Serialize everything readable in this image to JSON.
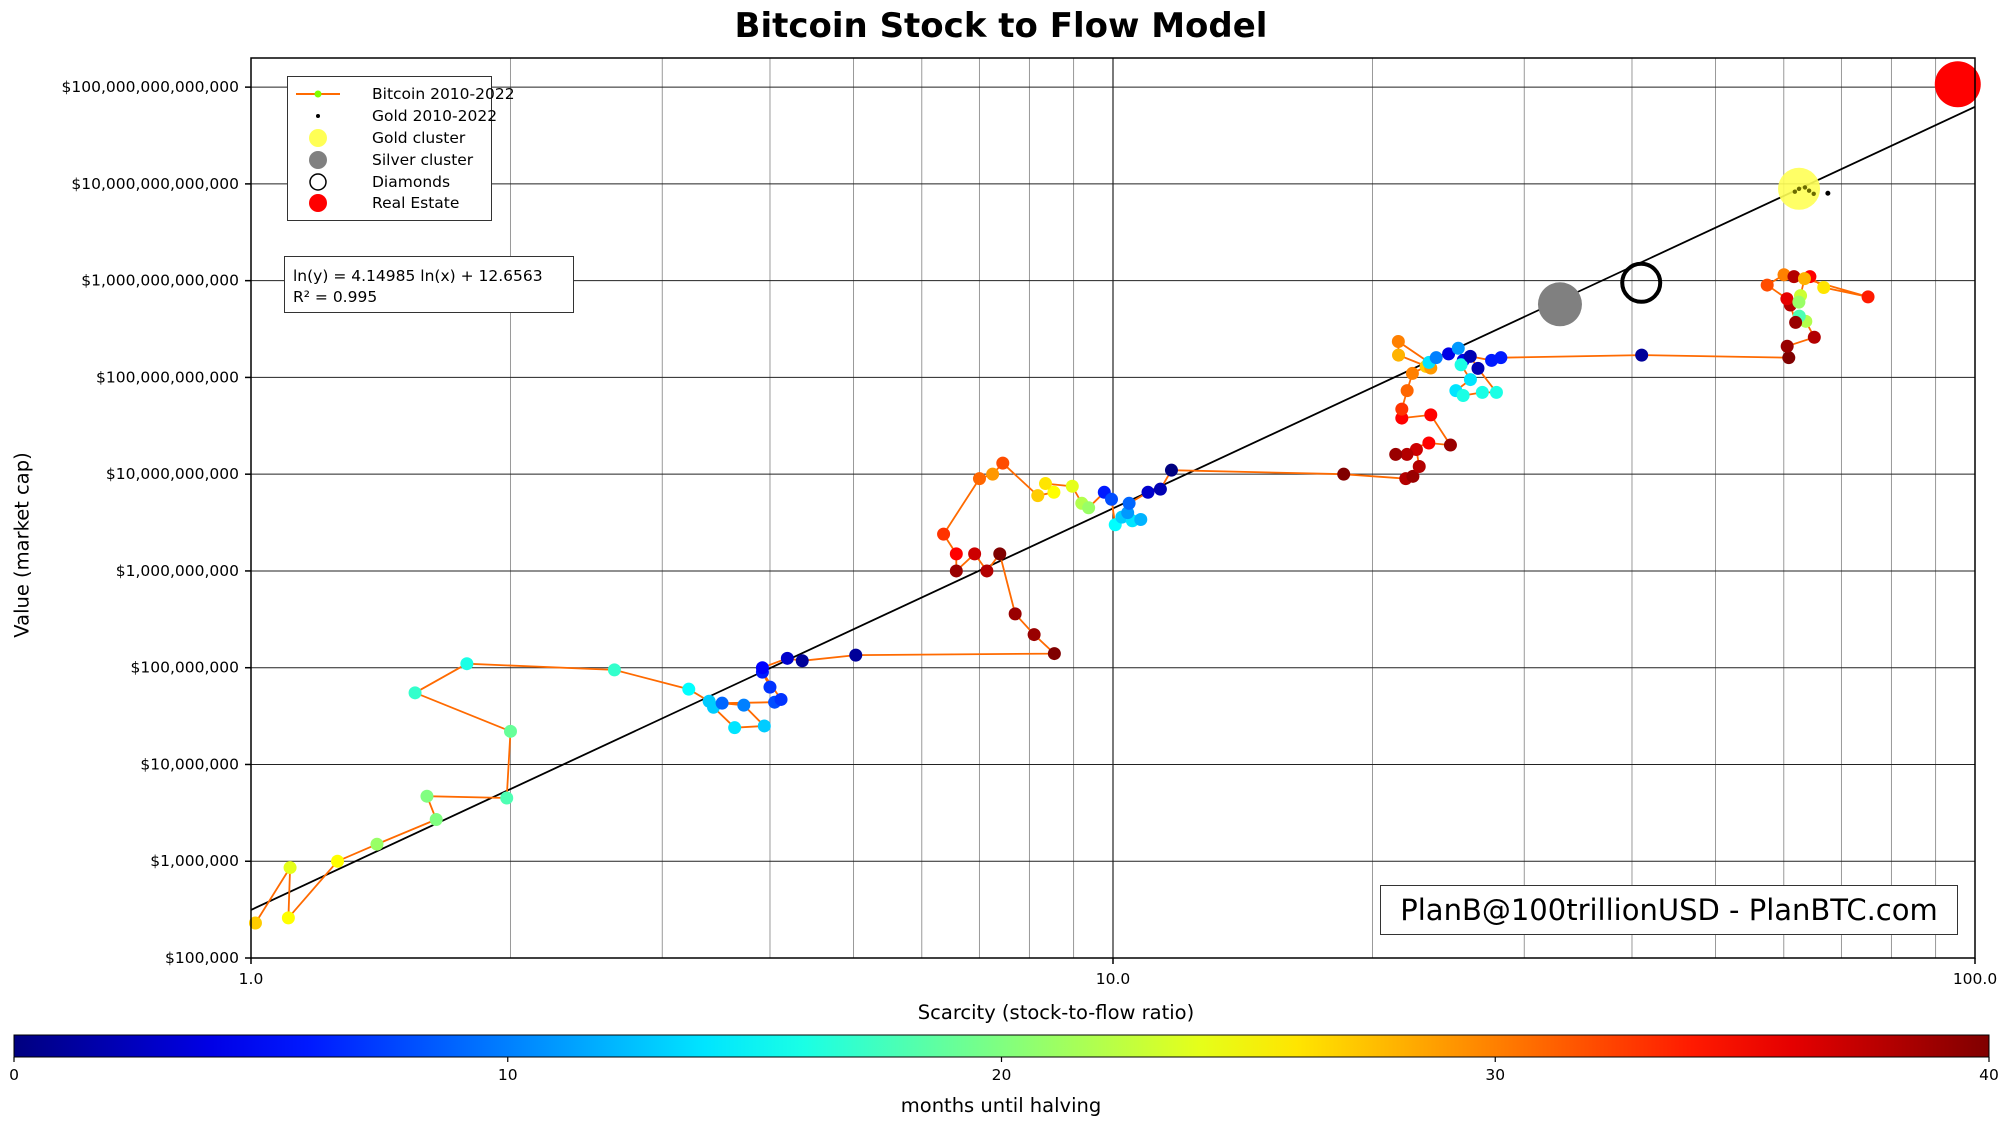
{
  "chart_data": {
    "type": "scatter",
    "title": "Bitcoin Stock to Flow Model",
    "xlabel": "Scarcity (stock-to-flow ratio)",
    "ylabel": "Value (market cap)",
    "x_scale": "log",
    "y_scale": "log",
    "xlim": [
      1.0,
      100.0
    ],
    "ylim": [
      100000,
      200000000000000
    ],
    "x_ticks": [
      {
        "v": 1,
        "label": "1.0"
      },
      {
        "v": 10,
        "label": "10.0"
      },
      {
        "v": 100,
        "label": "100.0"
      }
    ],
    "y_ticks": [
      {
        "v": 100000,
        "label": "$100,000"
      },
      {
        "v": 1000000,
        "label": "$1,000,000"
      },
      {
        "v": 10000000,
        "label": "$10,000,000"
      },
      {
        "v": 100000000,
        "label": "$100,000,000"
      },
      {
        "v": 1000000000,
        "label": "$1,000,000,000"
      },
      {
        "v": 10000000000,
        "label": "$10,000,000,000"
      },
      {
        "v": 100000000000,
        "label": "$100,000,000,000"
      },
      {
        "v": 1000000000000,
        "label": "$1,000,000,000,000"
      },
      {
        "v": 10000000000000,
        "label": "$10,000,000,000,000"
      },
      {
        "v": 100000000000000,
        "label": "$100,000,000,000,000"
      }
    ],
    "grid": true,
    "legend_position": "top-left",
    "legend": [
      {
        "key": "bitcoin",
        "label": "Bitcoin 2010-2022"
      },
      {
        "key": "gold",
        "label": "Gold 2010-2022"
      },
      {
        "key": "gold_cluster",
        "label": "Gold cluster"
      },
      {
        "key": "silver",
        "label": "Silver cluster"
      },
      {
        "key": "diamonds",
        "label": "Diamonds"
      },
      {
        "key": "real_estate",
        "label": "Real Estate"
      }
    ],
    "regression": {
      "label_line1": "ln(y) = 4.14985 ln(x) + 12.6563",
      "label_line2": "R² = 0.995",
      "slope": 4.14985,
      "intercept": 12.6563
    },
    "colorbar": {
      "label": "months until halving",
      "min": 0,
      "max": 40,
      "ticks": [
        0,
        10,
        20,
        30,
        40
      ],
      "colormap": "jet"
    },
    "series": [
      {
        "name": "Bitcoin 2010-2022",
        "line_color": "#ff6a00",
        "points": [
          [
            1.012,
            230000,
            27
          ],
          [
            1.11,
            860000,
            24
          ],
          [
            1.105,
            260000,
            25
          ],
          [
            1.26,
            1000000,
            25
          ],
          [
            1.4,
            1500000,
            21
          ],
          [
            1.64,
            2700000,
            20
          ],
          [
            1.6,
            4700000,
            20
          ],
          [
            1.98,
            4500000,
            18
          ],
          [
            2.0,
            22000000,
            19
          ],
          [
            1.55,
            55000000,
            17
          ],
          [
            1.78,
            110000000,
            16
          ],
          [
            2.64,
            95000000,
            17
          ],
          [
            3.22,
            60000000,
            15
          ],
          [
            3.4,
            45000000,
            13
          ],
          [
            3.44,
            39000000,
            13
          ],
          [
            3.64,
            24000000,
            14
          ],
          [
            3.94,
            25000000,
            13
          ],
          [
            3.73,
            41000000,
            10
          ],
          [
            3.52,
            43000000,
            9
          ],
          [
            4.05,
            44000000,
            8
          ],
          [
            4.12,
            47000000,
            7
          ],
          [
            3.92,
            90000000,
            6
          ],
          [
            4.0,
            63000000,
            7
          ],
          [
            3.92,
            100000000,
            5
          ],
          [
            4.19,
            125000000,
            3
          ],
          [
            4.36,
            118000000,
            1
          ],
          [
            5.03,
            135000000,
            1
          ],
          [
            8.55,
            140000000,
            40
          ],
          [
            8.1,
            220000000,
            39
          ],
          [
            7.7,
            360000000,
            39
          ],
          [
            7.39,
            1500000000,
            40
          ],
          [
            7.14,
            1000000000,
            38
          ],
          [
            6.91,
            1500000000,
            37
          ],
          [
            6.58,
            1000000000,
            39
          ],
          [
            6.58,
            1500000000,
            35
          ],
          [
            6.36,
            2400000000,
            33
          ],
          [
            7.0,
            9000000000,
            31
          ],
          [
            7.25,
            10000000000,
            29
          ],
          [
            7.45,
            13000000000,
            32
          ],
          [
            8.18,
            6000000000,
            27
          ],
          [
            8.54,
            6500000000,
            25
          ],
          [
            8.35,
            8000000000,
            26
          ],
          [
            8.97,
            7500000000,
            24
          ],
          [
            9.2,
            5000000000,
            22
          ],
          [
            9.37,
            4500000000,
            21
          ],
          [
            9.77,
            6500000000,
            6
          ],
          [
            9.96,
            5500000000,
            8
          ],
          [
            10.06,
            3000000000,
            15
          ],
          [
            10.24,
            3600000000,
            13
          ],
          [
            10.53,
            3300000000,
            14
          ],
          [
            10.77,
            3400000000,
            12
          ],
          [
            10.4,
            4000000000,
            11
          ],
          [
            10.44,
            5000000000,
            9
          ],
          [
            10.98,
            6500000000,
            3
          ],
          [
            11.35,
            7000000000,
            2
          ],
          [
            11.69,
            11000000000,
            0
          ],
          [
            18.52,
            10000000000,
            40
          ],
          [
            21.86,
            9000000000,
            38
          ],
          [
            22.28,
            9500000000,
            39
          ],
          [
            22.66,
            12000000000,
            38
          ],
          [
            22.49,
            18000000000,
            37
          ],
          [
            21.93,
            16000000000,
            38
          ],
          [
            21.28,
            16000000000,
            39
          ],
          [
            23.25,
            21000000000,
            35
          ],
          [
            24.63,
            20000000000,
            39
          ],
          [
            23.37,
            41000000000,
            35
          ],
          [
            21.63,
            38000000000,
            35
          ],
          [
            21.63,
            47000000000,
            33
          ],
          [
            21.94,
            73000000000,
            31
          ],
          [
            22.25,
            110000000000,
            30
          ],
          [
            23.08,
            130000000000,
            27
          ],
          [
            23.37,
            125000000000,
            29
          ],
          [
            21.44,
            170000000000,
            28
          ],
          [
            21.43,
            235000000000,
            30
          ],
          [
            23.26,
            143000000000,
            14
          ],
          [
            23.71,
            160000000000,
            10
          ],
          [
            24.51,
            175000000000,
            4
          ],
          [
            25.15,
            200000000000,
            11
          ],
          [
            25.49,
            150000000000,
            4
          ],
          [
            25.34,
            135000000000,
            16
          ],
          [
            25.98,
            95000000000,
            14
          ],
          [
            24.99,
            73000000000,
            14
          ],
          [
            25.48,
            65000000000,
            16
          ],
          [
            26.82,
            70000000000,
            16
          ],
          [
            27.85,
            70000000000,
            16
          ],
          [
            26.51,
            124000000000,
            2
          ],
          [
            25.97,
            165000000000,
            2
          ],
          [
            27.49,
            150000000000,
            6
          ],
          [
            28.18,
            160000000000,
            6
          ],
          [
            41.05,
            170000000000,
            1
          ],
          [
            60.81,
            160000000000,
            40
          ],
          [
            60.55,
            210000000000,
            39
          ],
          [
            65.1,
            260000000000,
            38
          ],
          [
            63.64,
            380000000000,
            22
          ],
          [
            62.54,
            430000000000,
            18
          ],
          [
            61.93,
            370000000000,
            39
          ],
          [
            61.07,
            560000000000,
            38
          ],
          [
            60.5,
            650000000000,
            36
          ],
          [
            57.4,
            900000000000,
            32
          ],
          [
            60.03,
            1150000000000,
            30
          ],
          [
            61.66,
            1100000000000,
            38
          ],
          [
            64.34,
            1100000000000,
            35
          ],
          [
            66.76,
            850000000000,
            26
          ],
          [
            75.15,
            680000000000,
            34
          ],
          [
            63.41,
            1050000000000,
            28
          ],
          [
            62.75,
            700000000000,
            23
          ],
          [
            62.47,
            600000000000,
            21
          ]
        ]
      },
      {
        "name": "Gold 2010-2022",
        "points": [
          [
            62.5,
            8900000000000
          ],
          [
            63.5,
            9200000000000
          ],
          [
            64.2,
            8500000000000
          ],
          [
            65.0,
            7900000000000
          ],
          [
            61.8,
            8300000000000
          ]
        ]
      },
      {
        "name": "Gold cluster",
        "points": [
          [
            62.5,
            8900000000000
          ]
        ]
      },
      {
        "name": "Silver cluster",
        "points": [
          [
            33.0,
            570000000000
          ]
        ]
      },
      {
        "name": "Diamonds",
        "points": [
          [
            41.0,
            950000000000
          ]
        ]
      },
      {
        "name": "Real Estate",
        "points": [
          [
            95.5,
            107000000000000
          ]
        ]
      }
    ]
  },
  "colors": {
    "bitcoin_line": "#ff6a00",
    "gold_cluster": "#ffff55",
    "silver": "#808080",
    "real_estate": "#ff0000",
    "regression": "#000000"
  },
  "watermark": "PlanB@100trillionUSD  -  PlanBTC.com"
}
